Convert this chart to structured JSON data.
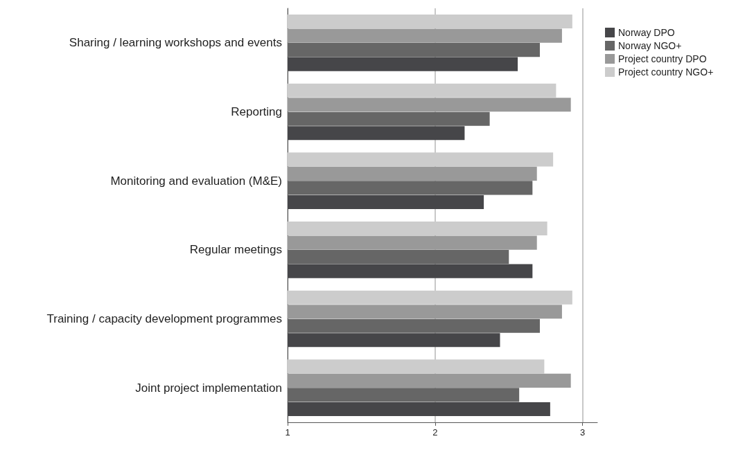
{
  "chart_data": {
    "type": "bar",
    "orientation": "horizontal",
    "categories": [
      "Sharing / learning workshops and events",
      "Reporting",
      "Monitoring and evaluation (M&E)",
      "Regular meetings",
      "Training / capacity development programmes",
      "Joint project implementation"
    ],
    "series": [
      {
        "name": "Norway DPO",
        "color": "#464649",
        "values": [
          2.56,
          2.2,
          2.33,
          2.66,
          2.44,
          2.78
        ]
      },
      {
        "name": "Norway NGO+",
        "color": "#666666",
        "values": [
          2.71,
          2.37,
          2.66,
          2.5,
          2.71,
          2.57
        ]
      },
      {
        "name": "Project country DPO",
        "color": "#999999",
        "values": [
          2.86,
          2.92,
          2.69,
          2.69,
          2.86,
          2.92
        ]
      },
      {
        "name": "Project country NGO+",
        "color": "#cccccc",
        "values": [
          2.93,
          2.82,
          2.8,
          2.76,
          2.93,
          2.74
        ]
      }
    ],
    "xlim": [
      1,
      3.1
    ],
    "xticks": [
      1,
      2,
      3
    ],
    "grid": "x",
    "legend": "top right"
  }
}
